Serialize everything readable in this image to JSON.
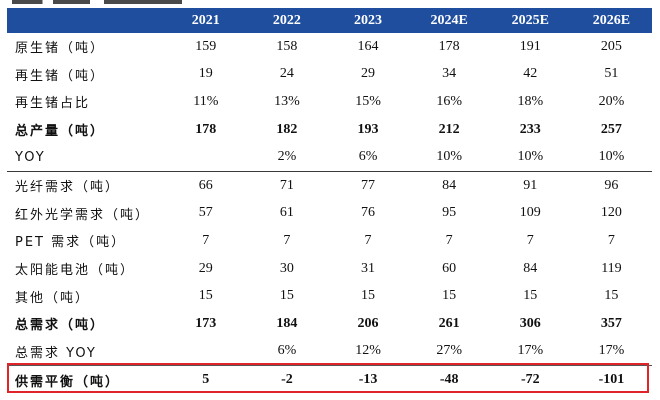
{
  "table": {
    "header": [
      "",
      "2021",
      "2022",
      "2023",
      "2024E",
      "2025E",
      "2026E"
    ],
    "rows": [
      {
        "label": "原生锗（吨）",
        "values": [
          "159",
          "158",
          "164",
          "178",
          "191",
          "205"
        ],
        "bold": false
      },
      {
        "label": "再生锗（吨）",
        "values": [
          "19",
          "24",
          "29",
          "34",
          "42",
          "51"
        ],
        "bold": false
      },
      {
        "label": "再生锗占比",
        "values": [
          "11%",
          "13%",
          "15%",
          "16%",
          "18%",
          "20%"
        ],
        "bold": false
      },
      {
        "label": "总产量（吨）",
        "values": [
          "178",
          "182",
          "193",
          "212",
          "233",
          "257"
        ],
        "bold": true
      },
      {
        "label": "YOY",
        "values": [
          "",
          "2%",
          "6%",
          "10%",
          "10%",
          "10%"
        ],
        "bold": false
      },
      {
        "label": "光纤需求（吨）",
        "values": [
          "66",
          "71",
          "77",
          "84",
          "91",
          "96"
        ],
        "bold": false
      },
      {
        "label": "红外光学需求（吨）",
        "values": [
          "57",
          "61",
          "76",
          "95",
          "109",
          "120"
        ],
        "bold": false
      },
      {
        "label": "PET 需求（吨）",
        "values": [
          "7",
          "7",
          "7",
          "7",
          "7",
          "7"
        ],
        "bold": false
      },
      {
        "label": "太阳能电池（吨）",
        "values": [
          "29",
          "30",
          "31",
          "60",
          "84",
          "119"
        ],
        "bold": false
      },
      {
        "label": "其他（吨）",
        "values": [
          "15",
          "15",
          "15",
          "15",
          "15",
          "15"
        ],
        "bold": false
      },
      {
        "label": "总需求（吨）",
        "values": [
          "173",
          "184",
          "206",
          "261",
          "306",
          "357"
        ],
        "bold": true
      },
      {
        "label": "总需求 YOY",
        "values": [
          "",
          "6%",
          "12%",
          "27%",
          "17%",
          "17%"
        ],
        "bold": false
      },
      {
        "label": "供需平衡（吨）",
        "values": [
          "5",
          "-2",
          "-13",
          "-48",
          "-72",
          "-101"
        ],
        "bold": true
      }
    ]
  },
  "colors": {
    "header_bg": "#1f4e9e",
    "header_text": "#ffffff",
    "highlight_border": "#e0242a"
  }
}
